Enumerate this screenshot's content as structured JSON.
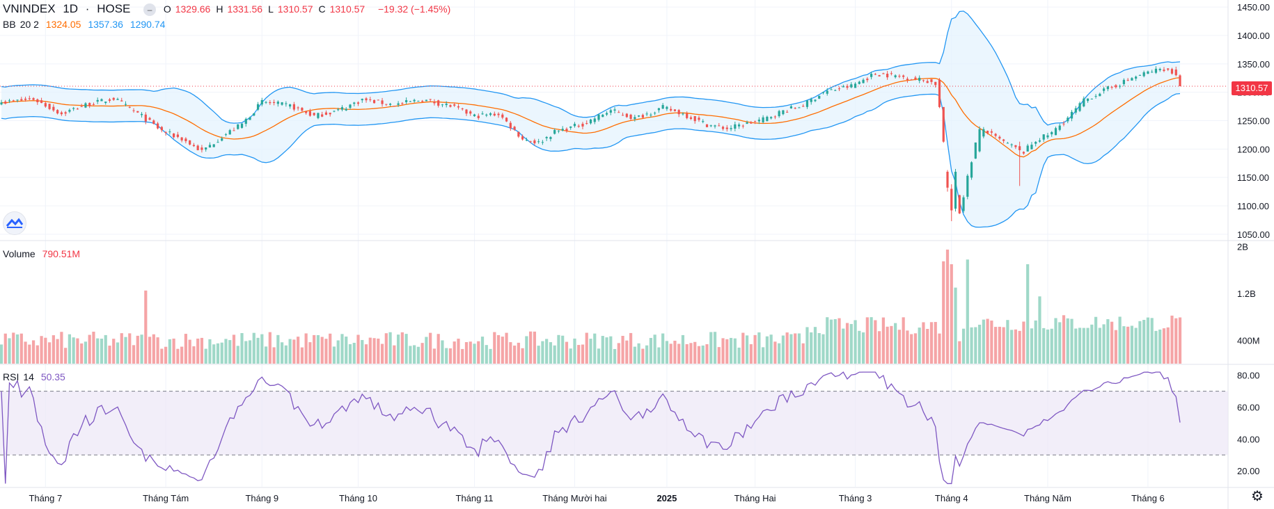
{
  "header": {
    "symbol": "VNINDEX",
    "interval": "1D",
    "exchange": "HOSE",
    "ohlc": [
      {
        "k": "O",
        "v": "1329.66"
      },
      {
        "k": "H",
        "v": "1331.56"
      },
      {
        "k": "L",
        "v": "1310.57"
      },
      {
        "k": "C",
        "v": "1310.57"
      }
    ],
    "change": "−19.32 (−1.45%)"
  },
  "bb_legend": {
    "name": "BB",
    "params": "20 2",
    "basis": "1324.05",
    "upper": "1357.36",
    "lower": "1290.74"
  },
  "volume_legend": {
    "name": "Volume",
    "value": "790.51M"
  },
  "rsi_legend": {
    "name": "RSI",
    "params": "14",
    "value": "50.35"
  },
  "last_price_tag": "1310.57",
  "colors": {
    "up": "#26a69a",
    "down": "#ef5350",
    "upper_band": "#2196f3",
    "basis": "#ff6d00",
    "rsi": "#7e57c2",
    "band_fill": "#e3f2fd"
  },
  "chart_data": [
    {
      "type": "candlestick",
      "title": "VNINDEX · 1D · HOSE",
      "y_ticks": [
        "1450.00",
        "1400.00",
        "1350.00",
        "1300.00",
        "1250.00",
        "1200.00",
        "1150.00",
        "1100.00",
        "1050.00"
      ],
      "ylim": [
        1040,
        1460
      ],
      "x_labels": [
        "Tháng 7",
        "Tháng Tám",
        "Tháng 9",
        "Tháng 10",
        "Tháng 11",
        "Tháng Mười hai",
        "2025",
        "Tháng Hai",
        "Tháng 3",
        "Tháng 4",
        "Tháng Năm",
        "Tháng 6"
      ],
      "label_bar_index": [
        11,
        41,
        65,
        89,
        118,
        143,
        166,
        188,
        213,
        237,
        261,
        286
      ],
      "anchors": [
        [
          0,
          1282
        ],
        [
          8,
          1288
        ],
        [
          15,
          1262
        ],
        [
          20,
          1276
        ],
        [
          28,
          1289
        ],
        [
          35,
          1258
        ],
        [
          40,
          1232
        ],
        [
          45,
          1218
        ],
        [
          50,
          1196
        ],
        [
          55,
          1222
        ],
        [
          60,
          1244
        ],
        [
          65,
          1283
        ],
        [
          72,
          1276
        ],
        [
          78,
          1258
        ],
        [
          84,
          1268
        ],
        [
          90,
          1287
        ],
        [
          98,
          1278
        ],
        [
          105,
          1287
        ],
        [
          112,
          1276
        ],
        [
          118,
          1258
        ],
        [
          124,
          1262
        ],
        [
          130,
          1218
        ],
        [
          134,
          1211
        ],
        [
          138,
          1230
        ],
        [
          145,
          1244
        ],
        [
          152,
          1268
        ],
        [
          158,
          1254
        ],
        [
          165,
          1273
        ],
        [
          170,
          1262
        ],
        [
          176,
          1243
        ],
        [
          181,
          1236
        ],
        [
          185,
          1243
        ],
        [
          190,
          1252
        ],
        [
          195,
          1267
        ],
        [
          200,
          1277
        ],
        [
          205,
          1300
        ],
        [
          212,
          1311
        ],
        [
          218,
          1333
        ],
        [
          225,
          1327
        ],
        [
          231,
          1320
        ],
        [
          233,
          1315
        ],
        [
          235,
          1215
        ],
        [
          237,
          1155
        ],
        [
          239,
          1088
        ],
        [
          241,
          1150
        ],
        [
          243,
          1210
        ],
        [
          245,
          1235
        ],
        [
          248,
          1220
        ],
        [
          252,
          1205
        ],
        [
          255,
          1195
        ],
        [
          258,
          1215
        ],
        [
          262,
          1228
        ],
        [
          266,
          1255
        ],
        [
          270,
          1285
        ],
        [
          274,
          1300
        ],
        [
          278,
          1312
        ],
        [
          282,
          1325
        ],
        [
          286,
          1335
        ],
        [
          290,
          1342
        ],
        [
          293,
          1329
        ],
        [
          294,
          1310.57
        ]
      ],
      "special_bars": [
        {
          "i": 234,
          "o": 1322,
          "h": 1325,
          "l": 1272,
          "c": 1274
        },
        {
          "i": 235,
          "o": 1274,
          "h": 1274,
          "l": 1211,
          "c": 1213
        },
        {
          "i": 236,
          "o": 1160,
          "h": 1163,
          "l": 1125,
          "c": 1132
        },
        {
          "i": 237,
          "o": 1130,
          "h": 1138,
          "l": 1073,
          "c": 1092
        },
        {
          "i": 238,
          "o": 1095,
          "h": 1165,
          "l": 1090,
          "c": 1160
        },
        {
          "i": 244,
          "o": 1196,
          "h": 1240,
          "l": 1194,
          "c": 1235
        },
        {
          "i": 254,
          "o": 1205,
          "h": 1213,
          "l": 1135,
          "c": 1198
        },
        {
          "i": 293,
          "o": 1340,
          "h": 1345,
          "l": 1328,
          "c": 1330
        },
        {
          "i": 294,
          "o": 1329.66,
          "h": 1331.56,
          "l": 1310.57,
          "c": 1310.57
        }
      ],
      "bands": {
        "period": 20,
        "mult": 2,
        "basis_last": 1324.05,
        "upper_last": 1357.36,
        "lower_last": 1290.74
      },
      "last_close": 1310.57
    },
    {
      "type": "bar",
      "title": "Volume",
      "y_ticks": [
        "2B",
        "1.2B",
        "400M"
      ],
      "ylim_millions": [
        0,
        2080
      ],
      "last_value_millions": 790.51,
      "spikes_millions": [
        [
          36,
          1250
        ],
        [
          235,
          1750
        ],
        [
          236,
          1950
        ],
        [
          237,
          1700
        ],
        [
          238,
          1300
        ],
        [
          241,
          1780
        ],
        [
          256,
          1700
        ],
        [
          259,
          1150
        ]
      ]
    },
    {
      "type": "line",
      "title": "RSI 14",
      "y_ticks": [
        "80.00",
        "60.00",
        "40.00",
        "20.00"
      ],
      "ylim": [
        10,
        86
      ],
      "bands": [
        70,
        30
      ],
      "last_value": 50.35
    }
  ]
}
